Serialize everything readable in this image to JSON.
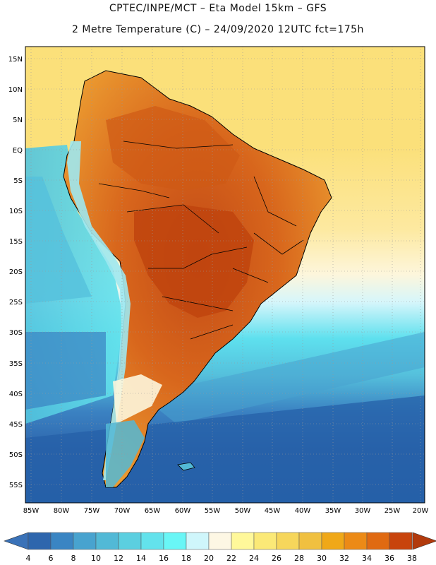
{
  "header": {
    "title_line1": "CPTEC/INPE/MCT –  Eta Model 15km – GFS",
    "title_line2": "2 Metre Temperature (C) – 24/09/2020 12UTC fct=175h"
  },
  "map": {
    "lat_labels": [
      "15N",
      "10N",
      "5N",
      "EQ",
      "5S",
      "10S",
      "15S",
      "20S",
      "25S",
      "30S",
      "35S",
      "40S",
      "45S",
      "50S",
      "55S"
    ],
    "lon_labels": [
      "85W",
      "80W",
      "75W",
      "70W",
      "65W",
      "60W",
      "55W",
      "50W",
      "45W",
      "40W",
      "35W",
      "30W",
      "25W",
      "20W"
    ],
    "colors": {
      "ocean_far_south": "#2660a8",
      "ocean_south": "#3b82c2",
      "ocean_mid": "#55c0dc",
      "ocean_cyan": "#5ee0ee",
      "ocean_pale": "#d6f6fb",
      "ocean_cream": "#fdf6dc",
      "ocean_tropical": "#fbe07a",
      "land_hot": "#c8501a",
      "land_warm": "#e07a22",
      "land_mild": "#f0a83a",
      "andes_cold": "#9fe8f0",
      "grid": "#999999"
    }
  },
  "colorbar": {
    "labels": [
      "4",
      "6",
      "8",
      "10",
      "12",
      "14",
      "16",
      "18",
      "20",
      "22",
      "24",
      "26",
      "28",
      "30",
      "32",
      "34",
      "36",
      "38"
    ],
    "colors": [
      "#2e66ad",
      "#3a85c3",
      "#48a3cf",
      "#52b9d6",
      "#5bcfe0",
      "#63e2ec",
      "#69f6f6",
      "#cff6fb",
      "#fdf7e4",
      "#fff89a",
      "#fbe977",
      "#f6d65b",
      "#f0c040",
      "#f0a818",
      "#ec8a16",
      "#e06a12",
      "#c8440c"
    ],
    "left_arrow_color": "#3a72b8",
    "right_arrow_color": "#b23a0c"
  }
}
